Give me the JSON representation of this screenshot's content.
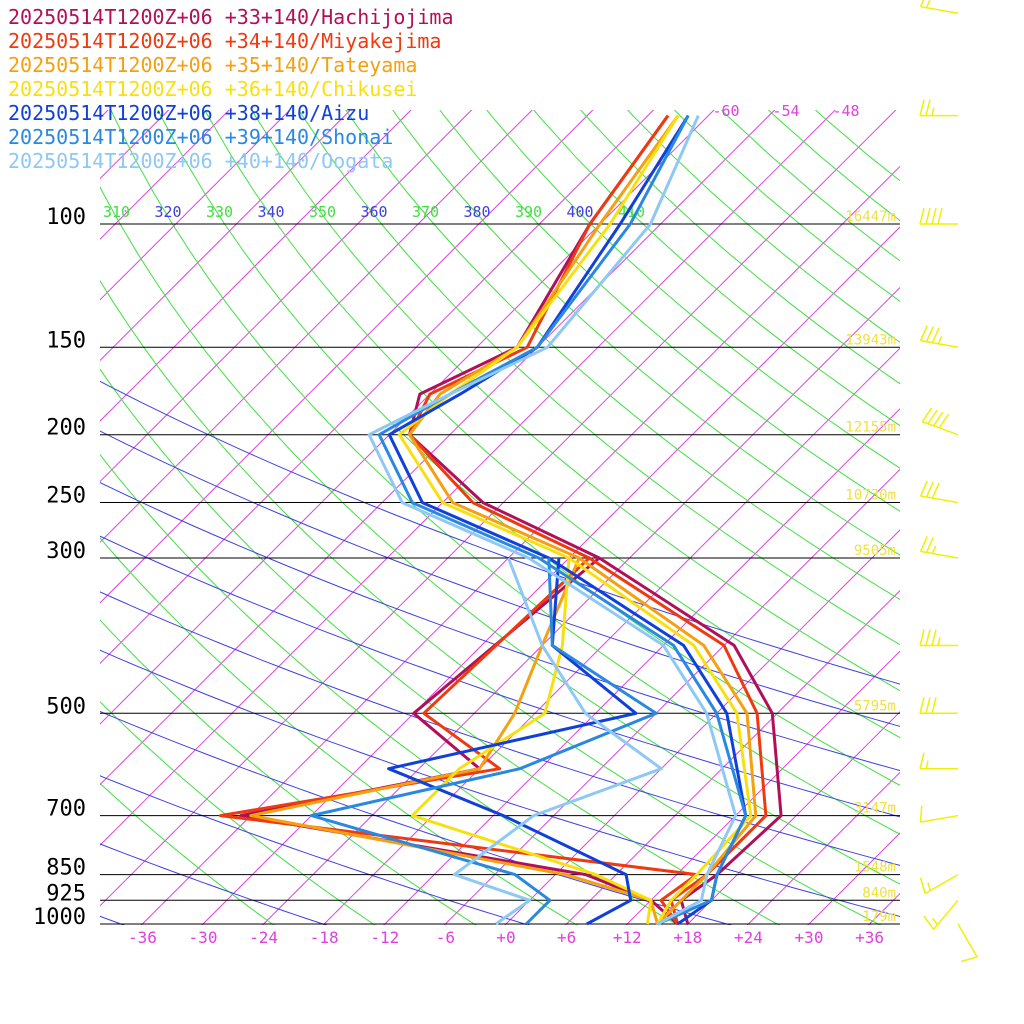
{
  "chart_data": {
    "type": "line",
    "title": "",
    "xlabel": "",
    "ylabel": "",
    "x_unit_ticks": [
      -36,
      -30,
      -24,
      -18,
      -12,
      -6,
      0,
      6,
      12,
      18,
      24,
      30,
      36
    ],
    "x_tick_labels": [
      "-36",
      "-30",
      "-24",
      "-18",
      "-12",
      "-6",
      "+0",
      "+6",
      "+12",
      "+18",
      "+24",
      "+30",
      "+36"
    ],
    "pressure_ticks": [
      100,
      150,
      200,
      250,
      300,
      500,
      700,
      850,
      925,
      1000
    ],
    "heights": [
      {
        "p": 100,
        "label": "16447m"
      },
      {
        "p": 150,
        "label": "13943m"
      },
      {
        "p": 200,
        "label": "12155m"
      },
      {
        "p": 250,
        "label": "10730m"
      },
      {
        "p": 300,
        "label": "9505m"
      },
      {
        "p": 500,
        "label": "5795m"
      },
      {
        "p": 700,
        "label": "3147m"
      },
      {
        "p": 850,
        "label": "1548m"
      },
      {
        "p": 925,
        "label": "840m"
      },
      {
        "p": 1000,
        "label": "179m"
      }
    ],
    "isotherm_top_labels": [
      "-60",
      "-54",
      "-48"
    ],
    "theta_labels": [
      "310",
      "320",
      "330",
      "340",
      "350",
      "360",
      "370",
      "380",
      "390",
      "400",
      "410"
    ],
    "series": [
      {
        "name": "20250514T1200Z+06 +33+140/Hachijojima",
        "color": "#b0105a",
        "temperature": [
          [
            1000,
            18
          ],
          [
            925,
            15
          ],
          [
            850,
            16
          ],
          [
            700,
            16.5
          ],
          [
            500,
            5.5
          ],
          [
            400,
            -5
          ],
          [
            300,
            -27
          ],
          [
            250,
            -44
          ],
          [
            200,
            -58
          ],
          [
            175,
            -61
          ],
          [
            150,
            -56
          ],
          [
            100,
            -61
          ],
          [
            70,
            -64
          ]
        ],
        "dewpoint": [
          [
            1000,
            17
          ],
          [
            925,
            12
          ],
          [
            850,
            3
          ],
          [
            700,
            -37
          ],
          [
            600,
            -18
          ],
          [
            500,
            -30
          ],
          [
            300,
            -27
          ]
        ]
      },
      {
        "name": "20250514T1200Z+06 +34+140/Miyakejima",
        "color": "#ee3a10",
        "temperature": [
          [
            1000,
            17
          ],
          [
            925,
            14
          ],
          [
            850,
            15
          ],
          [
            700,
            15
          ],
          [
            500,
            4
          ],
          [
            400,
            -6
          ],
          [
            300,
            -28
          ],
          [
            250,
            -45
          ],
          [
            200,
            -58
          ],
          [
            175,
            -60
          ],
          [
            150,
            -55
          ],
          [
            100,
            -61
          ],
          [
            70,
            -64
          ]
        ],
        "dewpoint": [
          [
            1000,
            17
          ],
          [
            925,
            13
          ],
          [
            850,
            14
          ],
          [
            700,
            -39
          ],
          [
            600,
            -16
          ],
          [
            500,
            -29
          ],
          [
            300,
            -28
          ]
        ]
      },
      {
        "name": "20250514T1200Z+06 +35+140/Tateyama",
        "color": "#f4a010",
        "temperature": [
          [
            1000,
            15
          ],
          [
            925,
            15
          ],
          [
            850,
            15
          ],
          [
            700,
            14
          ],
          [
            500,
            3
          ],
          [
            400,
            -8
          ],
          [
            300,
            -29
          ],
          [
            250,
            -47
          ],
          [
            200,
            -58
          ],
          [
            175,
            -59
          ],
          [
            150,
            -56
          ],
          [
            100,
            -60
          ],
          [
            70,
            -63
          ]
        ],
        "dewpoint": [
          [
            1000,
            15
          ],
          [
            925,
            12
          ],
          [
            850,
            1
          ],
          [
            700,
            -36
          ],
          [
            600,
            -18
          ],
          [
            500,
            -20
          ],
          [
            400,
            -24
          ],
          [
            300,
            -29
          ]
        ]
      },
      {
        "name": "20250514T1200Z+06 +36+140/Chikusei",
        "color": "#f8e010",
        "temperature": [
          [
            1000,
            15
          ],
          [
            925,
            14
          ],
          [
            850,
            14
          ],
          [
            700,
            13.5
          ],
          [
            500,
            2
          ],
          [
            400,
            -9
          ],
          [
            300,
            -30
          ],
          [
            250,
            -48
          ],
          [
            200,
            -59
          ],
          [
            175,
            -58
          ],
          [
            150,
            -56
          ],
          [
            100,
            -59
          ],
          [
            70,
            -63
          ]
        ],
        "dewpoint": [
          [
            1000,
            14
          ],
          [
            925,
            12
          ],
          [
            850,
            4
          ],
          [
            700,
            -20
          ],
          [
            600,
            -20
          ],
          [
            500,
            -17
          ],
          [
            400,
            -22
          ],
          [
            300,
            -30
          ]
        ]
      },
      {
        "name": "20250514T1200Z+06 +38+140/Aizu",
        "color": "#1040d8",
        "temperature": [
          [
            1000,
            17
          ],
          [
            925,
            18
          ],
          [
            850,
            16
          ],
          [
            700,
            13
          ],
          [
            500,
            1
          ],
          [
            400,
            -10
          ],
          [
            300,
            -32
          ],
          [
            250,
            -50
          ],
          [
            200,
            -60
          ],
          [
            175,
            -57
          ],
          [
            150,
            -54
          ],
          [
            100,
            -58
          ],
          [
            70,
            -62
          ]
        ],
        "dewpoint": [
          [
            1000,
            8
          ],
          [
            925,
            10
          ],
          [
            850,
            7
          ],
          [
            700,
            -11
          ],
          [
            600,
            -27
          ],
          [
            500,
            -8
          ],
          [
            400,
            -23
          ],
          [
            300,
            -31
          ]
        ]
      },
      {
        "name": "20250514T1200Z+06 +39+140/Shonai",
        "color": "#2a88e0",
        "temperature": [
          [
            1000,
            15
          ],
          [
            925,
            18
          ],
          [
            850,
            16
          ],
          [
            700,
            13
          ],
          [
            500,
            0
          ],
          [
            400,
            -11
          ],
          [
            300,
            -33
          ],
          [
            250,
            -51
          ],
          [
            200,
            -61
          ],
          [
            175,
            -58
          ],
          [
            150,
            -54
          ],
          [
            100,
            -57
          ],
          [
            70,
            -62
          ]
        ],
        "dewpoint": [
          [
            1000,
            2
          ],
          [
            925,
            2
          ],
          [
            850,
            -4
          ],
          [
            700,
            -30
          ],
          [
            600,
            -14
          ],
          [
            500,
            -6
          ],
          [
            400,
            -23
          ],
          [
            300,
            -32
          ]
        ]
      },
      {
        "name": "20250514T1200Z+06 +40+140/Oogata",
        "color": "#8ec8f4",
        "temperature": [
          [
            1000,
            15
          ],
          [
            925,
            17
          ],
          [
            850,
            15
          ],
          [
            700,
            12
          ],
          [
            500,
            -1
          ],
          [
            400,
            -12
          ],
          [
            300,
            -34
          ],
          [
            250,
            -52
          ],
          [
            200,
            -62
          ],
          [
            175,
            -58
          ],
          [
            150,
            -53
          ],
          [
            100,
            -55
          ],
          [
            70,
            -61
          ]
        ],
        "dewpoint": [
          [
            1000,
            -1
          ],
          [
            925,
            0
          ],
          [
            850,
            -10
          ],
          [
            700,
            -8
          ],
          [
            600,
            0
          ],
          [
            500,
            -13
          ],
          [
            400,
            -24
          ],
          [
            300,
            -36
          ]
        ]
      }
    ],
    "wind_barbs": {
      "color": "#f0f000",
      "levels": [
        {
          "p": 1000,
          "dir": 150,
          "kt": 10
        },
        {
          "p": 925,
          "dir": 220,
          "kt": 15
        },
        {
          "p": 850,
          "dir": 240,
          "kt": 15
        },
        {
          "p": 700,
          "dir": 260,
          "kt": 10
        },
        {
          "p": 600,
          "dir": 270,
          "kt": 15
        },
        {
          "p": 500,
          "dir": 270,
          "kt": 30
        },
        {
          "p": 400,
          "dir": 270,
          "kt": 35
        },
        {
          "p": 300,
          "dir": 280,
          "kt": 25
        },
        {
          "p": 250,
          "dir": 280,
          "kt": 30
        },
        {
          "p": 200,
          "dir": 290,
          "kt": 40
        },
        {
          "p": 150,
          "dir": 280,
          "kt": 35
        },
        {
          "p": 100,
          "dir": 270,
          "kt": 40
        },
        {
          "p": 70,
          "dir": 270,
          "kt": 25
        },
        {
          "p": 50,
          "dir": 280,
          "kt": 15
        }
      ]
    },
    "colors": {
      "isotherm": "#e040e0",
      "dry_adiabat": "#40e040",
      "moist_adiabat": "#4040e0",
      "pressure_line": "#000000",
      "height_label": "#f0e040"
    }
  }
}
